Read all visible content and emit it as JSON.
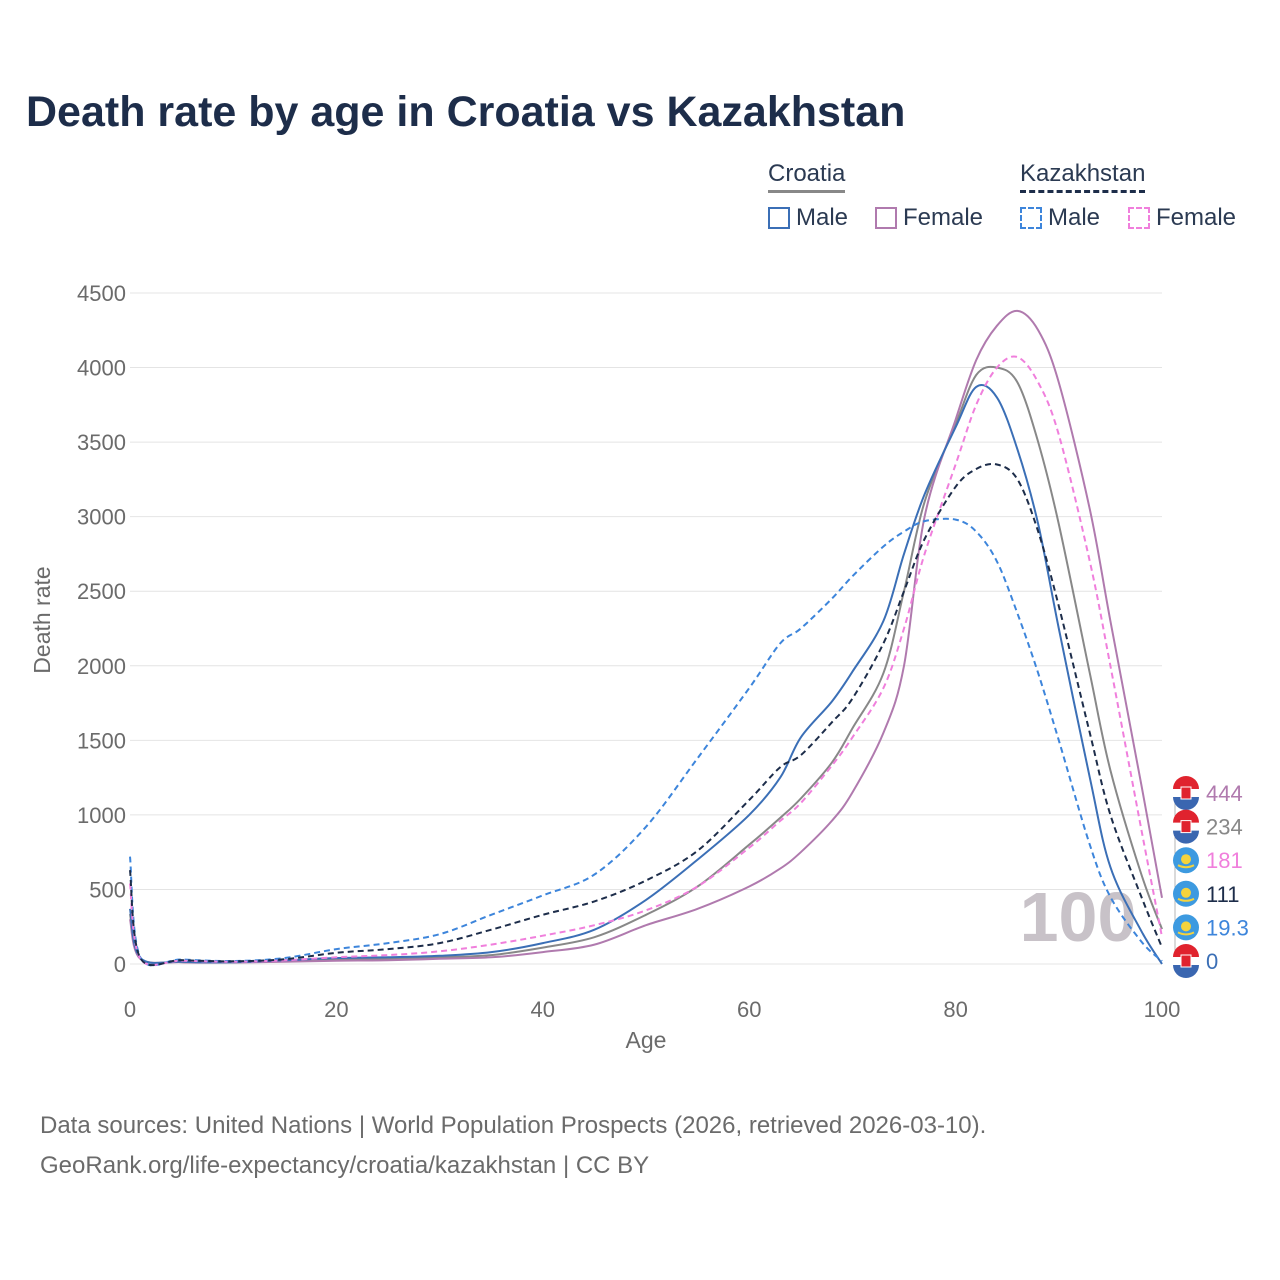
{
  "title": "Death rate by age in Croatia vs Kazakhstan",
  "legend": {
    "groups": [
      {
        "name": "Croatia",
        "items": [
          {
            "label": "Male"
          },
          {
            "label": "Female"
          }
        ]
      },
      {
        "name": "Kazakhstan",
        "items": [
          {
            "label": "Male"
          },
          {
            "label": "Female"
          }
        ]
      }
    ]
  },
  "footer": {
    "line1": "Data sources: United Nations | World Population Prospects (2026, retrieved 2026-03-10).",
    "line2": "GeoRank.org/life-expectancy/croatia/kazakhstan | CC BY"
  },
  "chart_data": {
    "type": "line",
    "title": "Death rate by age in Croatia vs Kazakhstan",
    "xlabel": "Age",
    "ylabel": "Death rate",
    "xlim": [
      0,
      100
    ],
    "ylim": [
      0,
      4500
    ],
    "x_ticks": [
      0,
      20,
      40,
      60,
      80,
      100
    ],
    "y_ticks": [
      0,
      500,
      1000,
      1500,
      2000,
      2500,
      3000,
      3500,
      4000,
      4500
    ],
    "current_age_label": "100",
    "x": [
      0,
      1,
      5,
      10,
      15,
      20,
      25,
      30,
      35,
      40,
      45,
      50,
      55,
      60,
      63,
      65,
      68,
      70,
      73,
      75,
      77,
      80,
      82,
      84,
      86,
      88,
      90,
      93,
      95,
      98,
      100
    ],
    "series": [
      {
        "name": "Croatia Male",
        "country": "Croatia",
        "sex": "Male",
        "dash": "solid",
        "color": "#3b6fb6",
        "end_label": "0",
        "values": [
          370,
          40,
          15,
          12,
          25,
          40,
          45,
          55,
          80,
          140,
          230,
          430,
          700,
          1000,
          1250,
          1520,
          1760,
          1960,
          2300,
          2750,
          3150,
          3600,
          3870,
          3800,
          3450,
          2950,
          2250,
          1250,
          650,
          220,
          0
        ]
      },
      {
        "name": "Croatia Female",
        "country": "Croatia",
        "sex": "Female",
        "dash": "solid",
        "color": "#b07aae",
        "end_label": "444",
        "values": [
          300,
          35,
          12,
          10,
          15,
          22,
          25,
          35,
          45,
          80,
          130,
          260,
          370,
          520,
          640,
          750,
          960,
          1150,
          1550,
          2000,
          3000,
          3650,
          4050,
          4280,
          4380,
          4250,
          3900,
          3050,
          2300,
          1200,
          444
        ]
      },
      {
        "name": "Croatia Total",
        "country": "Croatia",
        "sex": "Total",
        "dash": "solid",
        "color": "#888888",
        "end_label": "234",
        "values": [
          335,
          38,
          13,
          11,
          20,
          30,
          35,
          45,
          60,
          110,
          180,
          330,
          520,
          800,
          980,
          1110,
          1350,
          1580,
          1950,
          2500,
          3100,
          3620,
          3950,
          4000,
          3900,
          3500,
          2950,
          1950,
          1300,
          600,
          234
        ]
      },
      {
        "name": "Kazakhstan Male",
        "country": "Kazakhstan",
        "sex": "Male",
        "dash": "dashed",
        "color": "#3d85db",
        "end_label": "19.3",
        "values": [
          720,
          45,
          30,
          20,
          40,
          100,
          140,
          200,
          330,
          460,
          600,
          920,
          1380,
          1850,
          2150,
          2250,
          2450,
          2600,
          2800,
          2900,
          2970,
          2980,
          2900,
          2700,
          2350,
          1950,
          1500,
          800,
          450,
          150,
          19.3
        ]
      },
      {
        "name": "Kazakhstan Female",
        "country": "Kazakhstan",
        "sex": "Female",
        "dash": "dashed",
        "color": "#f07fdc",
        "end_label": "181",
        "values": [
          540,
          35,
          22,
          15,
          25,
          45,
          60,
          85,
          130,
          190,
          260,
          360,
          520,
          780,
          960,
          1080,
          1330,
          1520,
          1850,
          2250,
          2750,
          3350,
          3750,
          4000,
          4070,
          3900,
          3550,
          2700,
          2000,
          900,
          181
        ]
      },
      {
        "name": "Kazakhstan Total",
        "country": "Kazakhstan",
        "sex": "Total",
        "dash": "dashed",
        "color": "#1d2d4a",
        "end_label": "111",
        "values": [
          630,
          40,
          26,
          18,
          32,
          75,
          100,
          140,
          230,
          330,
          420,
          560,
          760,
          1100,
          1320,
          1400,
          1620,
          1780,
          2150,
          2500,
          2850,
          3200,
          3320,
          3350,
          3250,
          2900,
          2400,
          1550,
          1000,
          450,
          111
        ]
      }
    ],
    "end_labels_order": [
      "Croatia Female",
      "Croatia Total",
      "Kazakhstan Female",
      "Kazakhstan Total",
      "Kazakhstan Male",
      "Croatia Male"
    ]
  }
}
